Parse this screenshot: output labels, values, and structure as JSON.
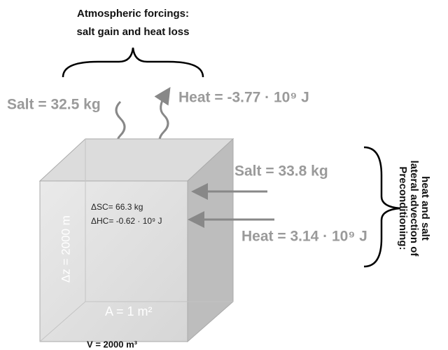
{
  "atmospheric": {
    "lines": [
      "Atmospheric forcings:",
      "salt gain and heat loss"
    ],
    "salt": "Salt = 32.5 kg",
    "heat": "Heat = -3.77 · 10⁹ J"
  },
  "lateral": {
    "salt": "Salt = 33.8 kg",
    "heat": "Heat = 3.14 · 10⁹ J",
    "lines": [
      "Preconditioning:",
      "lateral advection of",
      "heat and salt"
    ]
  },
  "box": {
    "delta_sc": "ΔSC= 66.3 kg",
    "delta_hc": "ΔHC= -0.62 · 10⁹ J",
    "depth": "Δz = 2000 m",
    "area": "A = 1 m²",
    "volume": "V = 2000 m³"
  }
}
